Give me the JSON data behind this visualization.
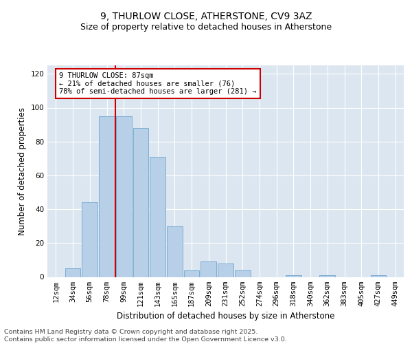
{
  "title": "9, THURLOW CLOSE, ATHERSTONE, CV9 3AZ",
  "subtitle": "Size of property relative to detached houses in Atherstone",
  "xlabel": "Distribution of detached houses by size in Atherstone",
  "ylabel": "Number of detached properties",
  "categories": [
    "12sqm",
    "34sqm",
    "56sqm",
    "78sqm",
    "99sqm",
    "121sqm",
    "143sqm",
    "165sqm",
    "187sqm",
    "209sqm",
    "231sqm",
    "252sqm",
    "274sqm",
    "296sqm",
    "318sqm",
    "340sqm",
    "362sqm",
    "383sqm",
    "405sqm",
    "427sqm",
    "449sqm"
  ],
  "values": [
    0,
    5,
    44,
    95,
    95,
    88,
    71,
    30,
    4,
    9,
    8,
    4,
    0,
    0,
    1,
    0,
    1,
    0,
    0,
    1,
    0
  ],
  "bar_color": "#b8cfe8",
  "bar_edge_color": "#7aadd4",
  "bg_color": "#dce6f0",
  "property_line_x": 3.5,
  "property_sqm": 87,
  "annotation_text": "9 THURLOW CLOSE: 87sqm\n← 21% of detached houses are smaller (76)\n78% of semi-detached houses are larger (281) →",
  "annotation_box_color": "#cc0000",
  "ylim": [
    0,
    125
  ],
  "yticks": [
    0,
    20,
    40,
    60,
    80,
    100,
    120
  ],
  "footer_text": "Contains HM Land Registry data © Crown copyright and database right 2025.\nContains public sector information licensed under the Open Government Licence v3.0.",
  "title_fontsize": 10,
  "subtitle_fontsize": 9,
  "axis_label_fontsize": 8.5,
  "tick_fontsize": 7.5,
  "footer_fontsize": 6.8,
  "ann_fontsize": 7.5
}
